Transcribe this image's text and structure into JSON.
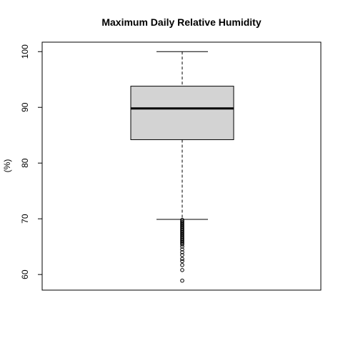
{
  "chart_data": {
    "type": "boxplot",
    "title": "Maximum Daily Relative Humidity",
    "xlabel": "",
    "ylabel": "(%)",
    "ylim": [
      57.2,
      101.7
    ],
    "yticks": [
      60,
      70,
      80,
      90,
      100
    ],
    "grid": false,
    "legend": "none",
    "box": {
      "min_whisker": 69.9,
      "q1": 84.2,
      "median": 89.8,
      "q3": 93.8,
      "max_whisker": 100
    },
    "outliers": [
      69.8,
      69.6,
      69.4,
      69.2,
      69.0,
      68.8,
      68.6,
      68.4,
      68.2,
      68.0,
      67.8,
      67.6,
      67.4,
      67.2,
      67.0,
      66.8,
      66.6,
      66.4,
      66.2,
      66.0,
      65.8,
      65.6,
      65.4,
      65.0,
      64.5,
      64.0,
      63.5,
      62.8,
      62.4,
      61.7,
      60.8,
      58.9
    ],
    "colors": {
      "box_fill": "#d3d3d3",
      "stroke": "#000000"
    }
  }
}
